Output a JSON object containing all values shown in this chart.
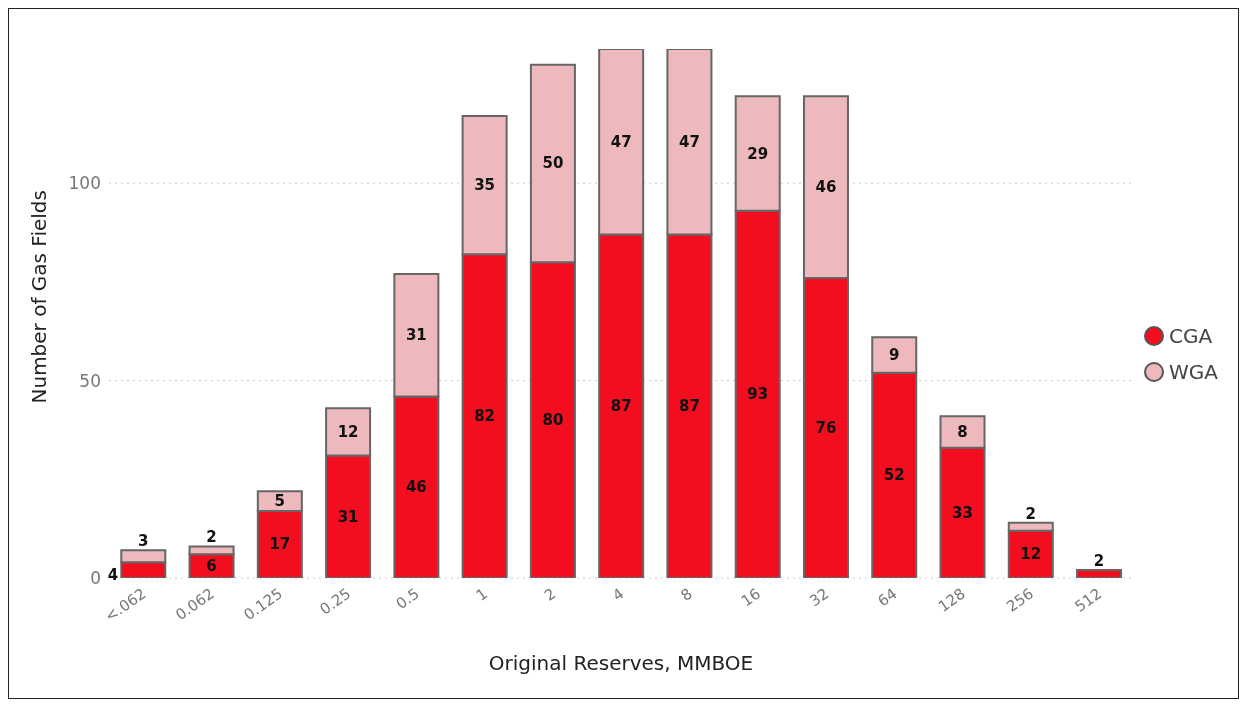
{
  "chart_data": {
    "type": "bar",
    "stacked": true,
    "xlabel": "Original Reserves, MMBOE",
    "ylabel": "Number of Gas Fields",
    "categories": [
      "<.062",
      "0.062",
      "0.125",
      "0.25",
      "0.5",
      "1",
      "2",
      "4",
      "8",
      "16",
      "32",
      "64",
      "128",
      "256",
      "512"
    ],
    "series": [
      {
        "name": "CGA",
        "color": "#f20d1f",
        "values": [
          4,
          6,
          17,
          31,
          46,
          82,
          80,
          87,
          87,
          93,
          76,
          52,
          33,
          12,
          2
        ]
      },
      {
        "name": "WGA",
        "color": "#edb9bd",
        "values": [
          3,
          2,
          5,
          12,
          31,
          35,
          50,
          47,
          47,
          29,
          46,
          9,
          8,
          2,
          null
        ]
      }
    ],
    "ylim": [
      0,
      134
    ],
    "yticks": [
      0,
      50,
      100
    ],
    "grid": "y",
    "legend": "right",
    "marker": "circle",
    "data_labels": true
  }
}
